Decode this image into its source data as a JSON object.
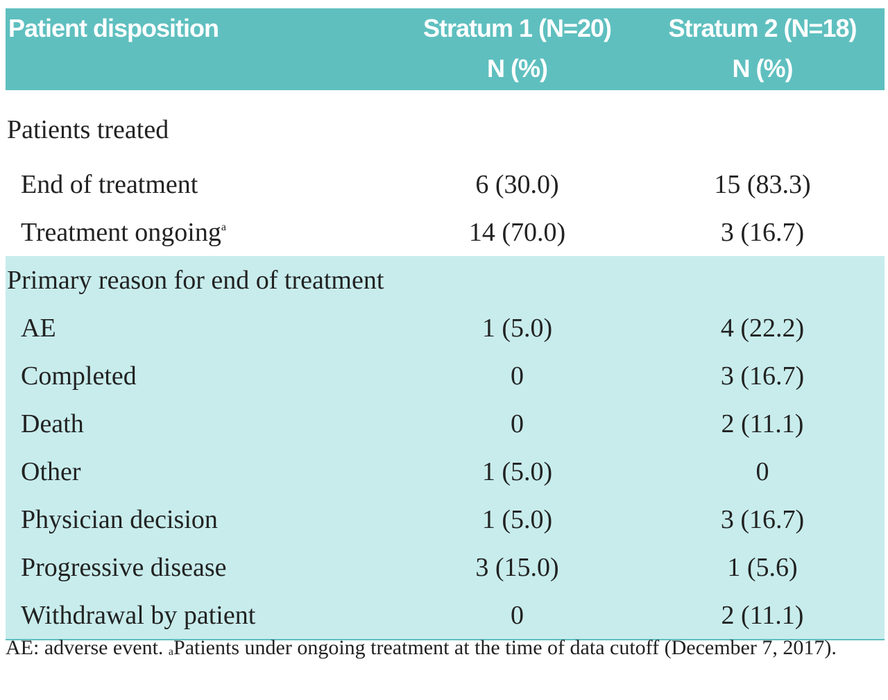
{
  "table": {
    "columns": [
      [
        "Patient disposition"
      ],
      [
        "Stratum 1 (N=20)",
        "N (%)"
      ],
      [
        "Stratum 2 (N=18)",
        "N (%)"
      ]
    ],
    "sections": [
      {
        "title": "Patients treated",
        "rows": [
          {
            "label": "End of treatment",
            "cells": [
              "6 (30.0)",
              "15 (83.3)"
            ]
          },
          {
            "label": "Treatment ongoing",
            "note": "a",
            "cells": [
              "14 (70.0)",
              "3 (16.7)"
            ]
          }
        ]
      },
      {
        "title": "Primary reason for end of treatment",
        "rows": [
          {
            "label": "AE",
            "cells": [
              "1 (5.0)",
              "4 (22.2)"
            ]
          },
          {
            "label": "Completed",
            "cells": [
              "0",
              "3 (16.7)"
            ]
          },
          {
            "label": "Death",
            "cells": [
              "0",
              "2 (11.1)"
            ]
          },
          {
            "label": "Other",
            "cells": [
              "1 (5.0)",
              "0"
            ]
          },
          {
            "label": "Physician decision",
            "cells": [
              "1 (5.0)",
              "3 (16.7)"
            ]
          },
          {
            "label": "Progressive disease",
            "cells": [
              "3 (15.0)",
              "1 (5.6)"
            ]
          },
          {
            "label": "Withdrawal by patient",
            "cells": [
              "0",
              "2 (11.1)"
            ]
          }
        ]
      }
    ]
  },
  "footnote": {
    "text1": "AE: adverse event.",
    "mark": "a",
    "text2": "Patients under ongoing treatment at the time of data cutoff (December 7, 2017)."
  }
}
